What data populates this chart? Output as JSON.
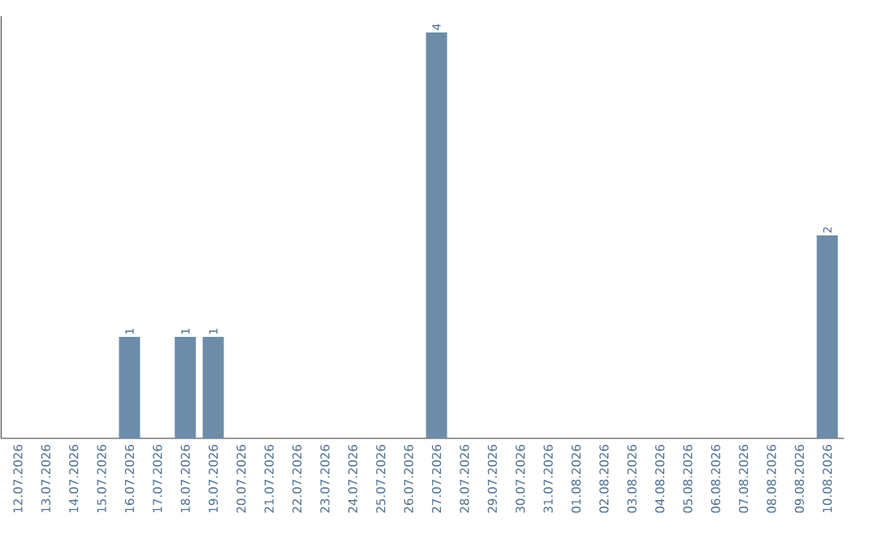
{
  "chart_data": {
    "type": "bar",
    "categories": [
      "12.07.2026",
      "13.07.2026",
      "14.07.2026",
      "15.07.2026",
      "16.07.2026",
      "17.07.2026",
      "18.07.2026",
      "19.07.2026",
      "20.07.2026",
      "21.07.2026",
      "22.07.2026",
      "23.07.2026",
      "24.07.2026",
      "25.07.2026",
      "26.07.2026",
      "27.07.2026",
      "28.07.2026",
      "29.07.2026",
      "30.07.2026",
      "31.07.2026",
      "01.08.2026",
      "02.08.2026",
      "03.08.2026",
      "04.08.2026",
      "05.08.2026",
      "06.08.2026",
      "07.08.2026",
      "08.08.2026",
      "09.08.2026",
      "10.08.2026"
    ],
    "values": [
      0,
      0,
      0,
      0,
      1,
      0,
      1,
      1,
      0,
      0,
      0,
      0,
      0,
      0,
      0,
      4,
      0,
      0,
      0,
      0,
      0,
      0,
      0,
      0,
      0,
      0,
      0,
      0,
      0,
      2
    ],
    "value_labels": [
      null,
      null,
      null,
      null,
      "1",
      null,
      "1",
      "1",
      null,
      null,
      null,
      null,
      null,
      null,
      null,
      "4",
      null,
      null,
      null,
      null,
      null,
      null,
      null,
      null,
      null,
      null,
      null,
      null,
      null,
      "2"
    ],
    "color": "#6d8ca8"
  }
}
